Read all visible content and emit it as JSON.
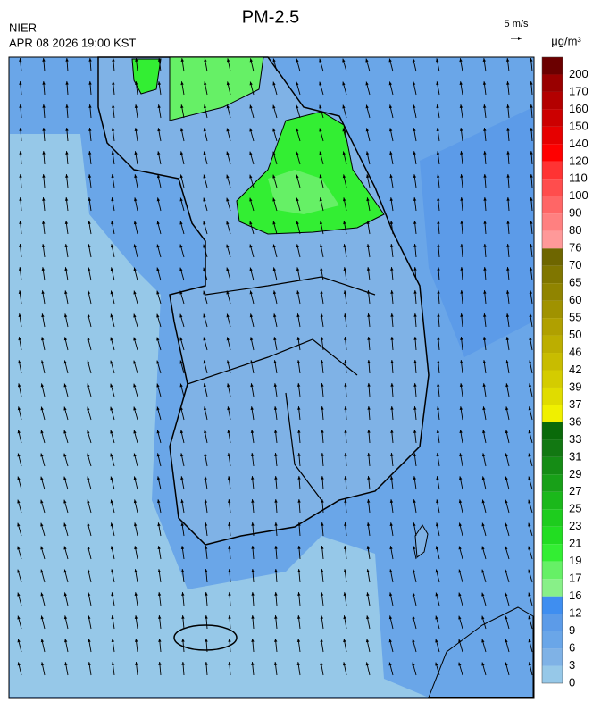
{
  "header": {
    "title": "PM-2.5",
    "agency": "NIER",
    "timestamp": "APR 08 2026 19:00 KST",
    "vector_scale": "5 m/s",
    "unit": "μg/m³"
  },
  "colorbar": {
    "levels": [
      0,
      3,
      6,
      9,
      12,
      16,
      17,
      19,
      21,
      23,
      25,
      27,
      29,
      31,
      33,
      36,
      37,
      39,
      42,
      46,
      50,
      55,
      60,
      65,
      70,
      76,
      80,
      90,
      100,
      110,
      120,
      140,
      150,
      160,
      170,
      200
    ],
    "colors": [
      "#96c8e8",
      "#7fb2e6",
      "#6aa6e8",
      "#5c9be8",
      "#3f8ef0",
      "#88f088",
      "#66f066",
      "#33ee33",
      "#22dd22",
      "#1ecc1e",
      "#1bb81b",
      "#18a018",
      "#158c15",
      "#127812",
      "#0a6a0a",
      "#f0f000",
      "#e0dc00",
      "#d4cc00",
      "#c8bc00",
      "#bcae00",
      "#b0a000",
      "#a09200",
      "#908400",
      "#807600",
      "#6e6600",
      "#ff9999",
      "#ff8080",
      "#ff6666",
      "#ff4d4d",
      "#ff3333",
      "#ff0000",
      "#e60000",
      "#cc0000",
      "#b30000",
      "#990000",
      "#6b0000"
    ]
  }
}
